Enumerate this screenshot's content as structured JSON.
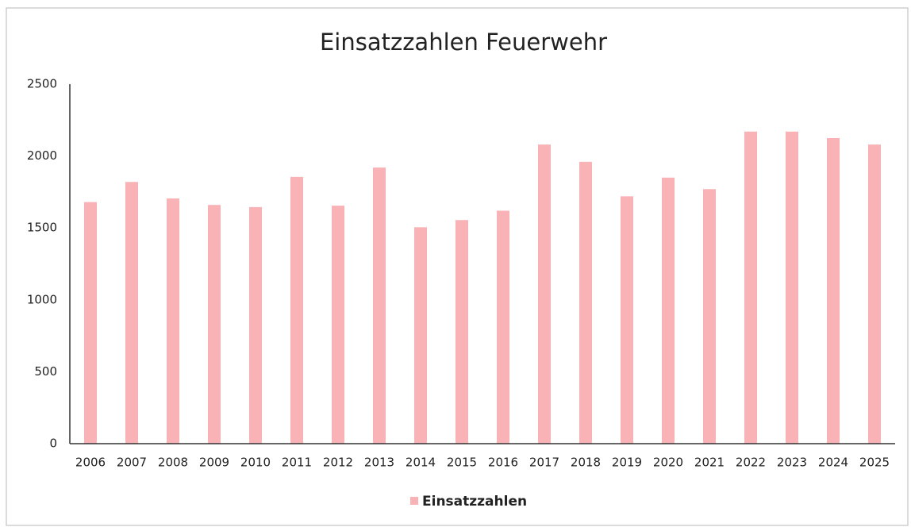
{
  "chart_data": {
    "type": "bar",
    "title": "Einsatzzahlen Feuerwehr",
    "categories": [
      "2006",
      "2007",
      "2008",
      "2009",
      "2010",
      "2011",
      "2012",
      "2013",
      "2014",
      "2015",
      "2016",
      "2017",
      "2018",
      "2019",
      "2020",
      "2021",
      "2022",
      "2023",
      "2024",
      "2025"
    ],
    "series": [
      {
        "name": "Einsatzzahlen",
        "color": "#f9b3b7",
        "values": [
          1680,
          1820,
          1705,
          1660,
          1645,
          1855,
          1655,
          1920,
          1505,
          1555,
          1620,
          2080,
          1960,
          1720,
          1850,
          1770,
          2170,
          2170,
          2125,
          2080
        ]
      }
    ],
    "ylim": [
      0,
      2500
    ],
    "yticks": [
      0,
      500,
      1000,
      1500,
      2000,
      2500
    ],
    "grid": false,
    "legend": "bottom"
  }
}
